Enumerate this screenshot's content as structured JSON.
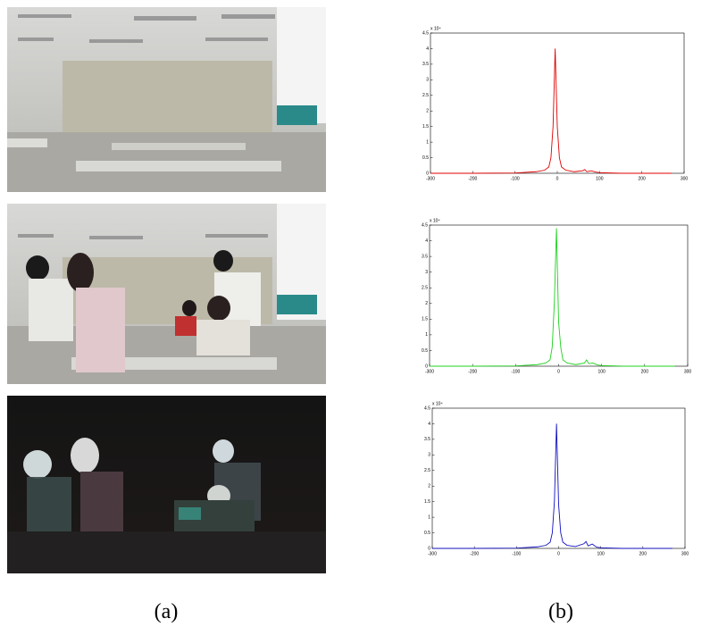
{
  "chart_data": [
    {
      "type": "line",
      "color": "#e00000",
      "x": [
        -300,
        -200,
        -100,
        -50,
        -30,
        -20,
        -15,
        -10,
        -5,
        0,
        5,
        10,
        20,
        40,
        60,
        65,
        70,
        80,
        90,
        100,
        150,
        200,
        270
      ],
      "values": [
        0,
        0,
        0.01,
        0.05,
        0.1,
        0.2,
        0.5,
        1.5,
        4.0,
        1.5,
        0.5,
        0.2,
        0.1,
        0.05,
        0.08,
        0.12,
        0.05,
        0.08,
        0.04,
        0.02,
        0,
        0,
        0
      ],
      "xlim": [
        -300,
        300
      ],
      "ylim": [
        0,
        4.5
      ],
      "xticks": [
        -300,
        -200,
        -100,
        0,
        100,
        200,
        300
      ],
      "yticks": [
        0,
        0.5,
        1,
        1.5,
        2,
        2.5,
        3,
        3.5,
        4,
        4.5
      ],
      "y_multiplier": "x 10⁴"
    },
    {
      "type": "line",
      "color": "#20d020",
      "x": [
        -300,
        -200,
        -100,
        -50,
        -30,
        -20,
        -15,
        -10,
        -5,
        0,
        5,
        10,
        20,
        40,
        60,
        65,
        70,
        80,
        90,
        100,
        150,
        200,
        270
      ],
      "values": [
        0,
        0,
        0.01,
        0.05,
        0.1,
        0.2,
        0.6,
        2.0,
        4.4,
        1.4,
        0.6,
        0.2,
        0.1,
        0.05,
        0.1,
        0.2,
        0.08,
        0.1,
        0.04,
        0.02,
        0,
        0,
        0
      ],
      "xlim": [
        -300,
        300
      ],
      "ylim": [
        0,
        4.5
      ],
      "xticks": [
        -300,
        -200,
        -100,
        0,
        100,
        200,
        300
      ],
      "yticks": [
        0,
        0.5,
        1,
        1.5,
        2,
        2.5,
        3,
        3.5,
        4,
        4.5
      ],
      "y_multiplier": "x 10⁴"
    },
    {
      "type": "line",
      "color": "#1010c0",
      "x": [
        -300,
        -200,
        -100,
        -50,
        -30,
        -20,
        -15,
        -10,
        -5,
        0,
        5,
        10,
        20,
        40,
        60,
        65,
        70,
        80,
        90,
        100,
        150,
        200,
        270
      ],
      "values": [
        0,
        0,
        0.01,
        0.05,
        0.1,
        0.2,
        0.5,
        1.5,
        4.0,
        1.4,
        0.5,
        0.2,
        0.1,
        0.06,
        0.15,
        0.22,
        0.08,
        0.14,
        0.04,
        0.02,
        0,
        0,
        0
      ],
      "xlim": [
        -300,
        300
      ],
      "ylim": [
        0,
        4.5
      ],
      "xticks": [
        -300,
        -200,
        -100,
        0,
        100,
        200,
        300
      ],
      "yticks": [
        0,
        0.5,
        1,
        1.5,
        2,
        2.5,
        3,
        3.5,
        4,
        4.5
      ],
      "y_multiplier": "x 10⁴"
    }
  ],
  "captions": {
    "a": "(a)",
    "b": "(b)"
  }
}
